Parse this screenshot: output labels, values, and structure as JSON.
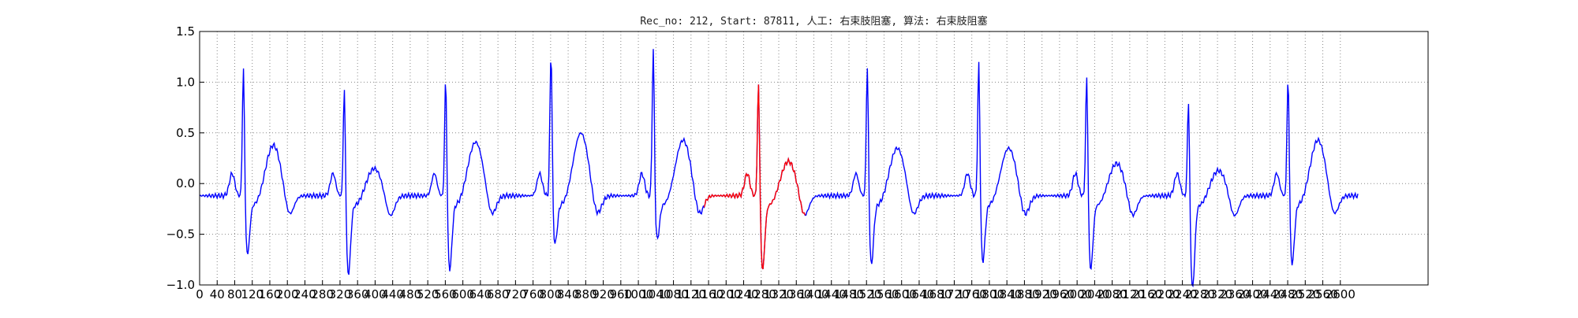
{
  "chart_data": {
    "type": "line",
    "title": "Rec_no: 212, Start: 87811, 人工: 右束肢阻塞, 算法: 右束肢阻塞",
    "xlabel": "",
    "ylabel": "",
    "xlim": [
      0,
      2800
    ],
    "ylim": [
      -1.0,
      1.5
    ],
    "grid": true,
    "x_ticks": [
      0,
      40,
      80,
      120,
      160,
      200,
      240,
      280,
      320,
      360,
      400,
      440,
      480,
      520,
      560,
      600,
      640,
      680,
      720,
      760,
      800,
      840,
      880,
      920,
      960,
      1000,
      1040,
      1080,
      1120,
      1160,
      1200,
      1240,
      1280,
      1320,
      1360,
      1400,
      1440,
      1480,
      1520,
      1560,
      1600,
      1640,
      1680,
      1720,
      1760,
      1800,
      1840,
      1880,
      1920,
      1960,
      2000,
      2040,
      2080,
      2120,
      2160,
      2200,
      2240,
      2280,
      2320,
      2360,
      2400,
      2440,
      2480,
      2520,
      2560,
      2600
    ],
    "y_ticks": [
      -1.0,
      -0.5,
      0.0,
      0.5,
      1.0,
      1.5
    ],
    "y_tick_labels": [
      "−1.0",
      "−0.5",
      "0.0",
      "0.5",
      "1.0",
      "1.5"
    ],
    "x_tick_labels_note": "",
    "series": [
      {
        "color": "#0000ff",
        "segment": "signal"
      },
      {
        "color": "#ff0000",
        "segment": "highlight",
        "x_range": [
          1150,
          1380
        ]
      }
    ],
    "beats": [
      {
        "q": 96,
        "r": 1.25,
        "s": -0.55,
        "t": 0.38
      },
      {
        "q": 326,
        "r": 1.08,
        "s": -0.75,
        "t": 0.15
      },
      {
        "q": 557,
        "r": 1.17,
        "s": -0.7,
        "t": 0.41
      },
      {
        "q": 797,
        "r": 1.4,
        "s": -0.45,
        "t": 0.5
      },
      {
        "q": 1030,
        "r": 1.41,
        "s": -0.4,
        "t": 0.43
      },
      {
        "q": 1270,
        "r": 1.12,
        "s": -0.7,
        "t": 0.22
      },
      {
        "q": 1518,
        "r": 1.27,
        "s": -0.65,
        "t": 0.35
      },
      {
        "q": 1772,
        "r": 1.32,
        "s": -0.62,
        "t": 0.35
      },
      {
        "q": 2018,
        "r": 1.2,
        "s": -0.7,
        "t": 0.2
      },
      {
        "q": 2250,
        "r": 0.98,
        "s": -0.88,
        "t": 0.13
      },
      {
        "q": 2477,
        "r": 1.17,
        "s": -0.65,
        "t": 0.43
      }
    ],
    "x_end": 2640,
    "colors": {
      "signal": "#0000ff",
      "highlight": "#ff0000",
      "grid": "#888888",
      "axes": "#000000"
    }
  }
}
